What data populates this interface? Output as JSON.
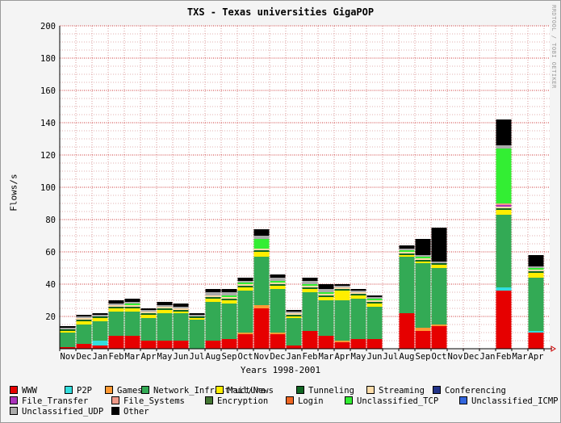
{
  "window": {
    "watermark": "RRDTOOL / TOBI OETIKER"
  },
  "chart_data": {
    "type": "bar",
    "title": "TXS - Texas universities GigaPOP",
    "xlabel": "Years 1998-2001",
    "ylabel": "Flows/s",
    "ylim": [
      0,
      200
    ],
    "y_ticks": [
      20,
      40,
      60,
      80,
      100,
      120,
      140,
      160,
      180,
      200
    ],
    "grid": "on",
    "legend_position": "bottom",
    "categories": [
      "Nov",
      "Dec",
      "Jan",
      "Feb",
      "Mar",
      "Apr",
      "May",
      "Jun",
      "Jul",
      "Aug",
      "Sep",
      "Oct",
      "Nov",
      "Dec",
      "Jan",
      "Feb",
      "Mar",
      "Apr",
      "May",
      "Jun",
      "Jul",
      "Aug",
      "Sep",
      "Oct",
      "Nov",
      "Dec",
      "Jan",
      "Feb",
      "Mar",
      "Apr"
    ],
    "series": [
      {
        "name": "WWW",
        "color": "#e60000",
        "values": [
          1,
          3,
          2,
          8,
          8,
          5,
          5,
          5,
          0,
          5,
          6,
          9,
          25,
          9,
          2,
          11,
          8,
          4,
          6,
          6,
          0,
          22,
          11,
          14,
          0,
          0,
          0,
          36,
          0,
          10
        ]
      },
      {
        "name": "P2P",
        "color": "#33dddd",
        "values": [
          0,
          0,
          3,
          0,
          0,
          0,
          0,
          0,
          0,
          0,
          0,
          0,
          0,
          0,
          0,
          0,
          0,
          0,
          0,
          0,
          0,
          0,
          0,
          0,
          0,
          0,
          0,
          2,
          0,
          1
        ]
      },
      {
        "name": "Games",
        "color": "#ff9933",
        "values": [
          0,
          0,
          0,
          0,
          0,
          0,
          0,
          0,
          0,
          0,
          0,
          1,
          2,
          1,
          0,
          0,
          0,
          1,
          0,
          0,
          0,
          0,
          2,
          1,
          0,
          0,
          0,
          0,
          0,
          0
        ]
      },
      {
        "name": "Network_Infrastructure",
        "color": "#33aa55",
        "values": [
          9,
          12,
          12,
          15,
          15,
          14,
          17,
          17,
          18,
          24,
          22,
          26,
          30,
          27,
          17,
          24,
          22,
          25,
          25,
          20,
          0,
          35,
          40,
          35,
          0,
          0,
          0,
          45,
          0,
          33
        ]
      },
      {
        "name": "Mail/News",
        "color": "#ffee00",
        "values": [
          1,
          2,
          2,
          2,
          2,
          2,
          2,
          1,
          1,
          2,
          2,
          2,
          3,
          2,
          1,
          2,
          2,
          6,
          2,
          2,
          0,
          1,
          1,
          2,
          0,
          0,
          0,
          3,
          0,
          3
        ]
      },
      {
        "name": "Tunneling",
        "color": "#116622",
        "values": [
          1,
          1,
          1,
          1,
          1,
          1,
          1,
          1,
          1,
          1,
          1,
          1,
          1,
          1,
          1,
          1,
          1,
          1,
          1,
          1,
          0,
          1,
          1,
          1,
          0,
          0,
          0,
          1,
          0,
          1
        ]
      },
      {
        "name": "Streaming",
        "color": "#ffddaa",
        "values": [
          0,
          1,
          0,
          1,
          1,
          1,
          1,
          1,
          0,
          1,
          1,
          1,
          1,
          1,
          1,
          1,
          1,
          1,
          1,
          1,
          0,
          1,
          1,
          0,
          0,
          0,
          0,
          1,
          0,
          1
        ]
      },
      {
        "name": "Conferencing",
        "color": "#223388",
        "values": [
          0,
          0,
          0,
          0,
          0,
          0,
          0,
          0,
          0,
          0,
          0,
          0,
          0,
          0,
          0,
          0,
          0,
          0,
          0,
          0,
          0,
          0,
          0,
          0,
          0,
          0,
          0,
          0,
          0,
          0
        ]
      },
      {
        "name": "File_Transfer",
        "color": "#aa33bb",
        "values": [
          0,
          0,
          0,
          0,
          0,
          0,
          0,
          0,
          0,
          0,
          0,
          0,
          0,
          0,
          0,
          0,
          0,
          0,
          0,
          0,
          0,
          0,
          0,
          0,
          0,
          0,
          0,
          1,
          0,
          0
        ]
      },
      {
        "name": "File_Systems",
        "color": "#ee9988",
        "values": [
          0,
          0,
          0,
          0,
          0,
          0,
          0,
          0,
          0,
          0,
          0,
          0,
          0,
          0,
          0,
          0,
          0,
          0,
          0,
          0,
          0,
          0,
          0,
          0,
          0,
          0,
          0,
          1,
          0,
          0
        ]
      },
      {
        "name": "Encryption",
        "color": "#447733",
        "values": [
          0,
          0,
          0,
          0,
          0,
          0,
          0,
          0,
          0,
          0,
          0,
          0,
          0,
          0,
          0,
          0,
          0,
          0,
          0,
          0,
          0,
          0,
          0,
          0,
          0,
          0,
          0,
          0,
          0,
          0
        ]
      },
      {
        "name": "Login",
        "color": "#ee6622",
        "values": [
          0,
          0,
          0,
          0,
          0,
          0,
          0,
          0,
          0,
          0,
          0,
          0,
          0,
          0,
          0,
          0,
          0,
          0,
          0,
          0,
          0,
          0,
          0,
          0,
          0,
          0,
          0,
          0,
          0,
          0
        ]
      },
      {
        "name": "Unclassified_TCP",
        "color": "#33ee33",
        "values": [
          0,
          0,
          0,
          0,
          1,
          0,
          0,
          0,
          0,
          0,
          1,
          1,
          6,
          1,
          0,
          1,
          1,
          0,
          0,
          1,
          0,
          1,
          1,
          0,
          0,
          0,
          0,
          34,
          0,
          1
        ]
      },
      {
        "name": "Unclassified_ICMP",
        "color": "#3366dd",
        "values": [
          0,
          0,
          0,
          0,
          0,
          0,
          0,
          0,
          0,
          0,
          0,
          0,
          0,
          0,
          0,
          0,
          0,
          0,
          0,
          0,
          0,
          0,
          0,
          0,
          0,
          0,
          0,
          0,
          0,
          0
        ]
      },
      {
        "name": "Unclassified_UDP",
        "color": "#aaaaaa",
        "values": [
          1,
          1,
          1,
          1,
          1,
          1,
          1,
          1,
          1,
          2,
          2,
          1,
          2,
          2,
          1,
          2,
          2,
          1,
          1,
          1,
          0,
          1,
          1,
          1,
          0,
          0,
          0,
          2,
          0,
          1
        ]
      },
      {
        "name": "Other",
        "color": "#000000",
        "values": [
          1,
          1,
          1,
          2,
          2,
          1,
          2,
          2,
          1,
          2,
          2,
          2,
          4,
          2,
          1,
          2,
          3,
          1,
          1,
          1,
          0,
          2,
          10,
          21,
          0,
          0,
          0,
          16,
          0,
          7
        ]
      }
    ]
  }
}
